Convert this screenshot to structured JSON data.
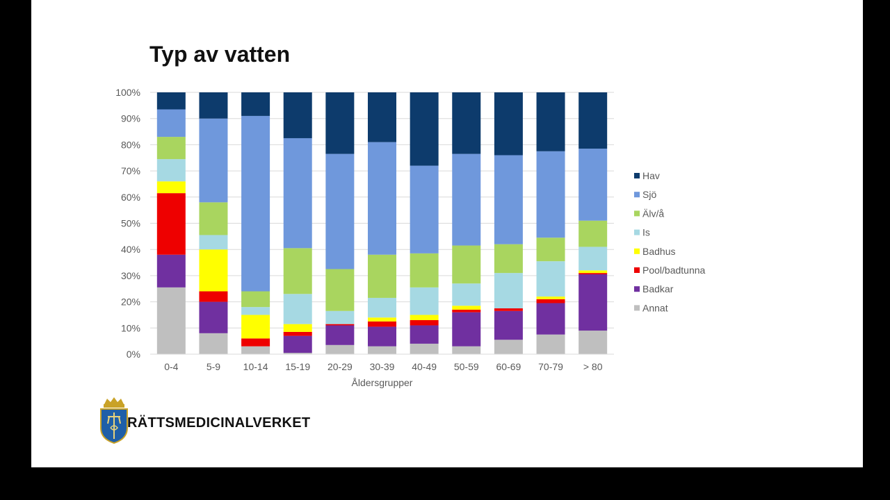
{
  "slide": {
    "title": "Typ av vatten",
    "organization": "RÄTTSMEDICINALVERKET"
  },
  "chart_data": {
    "type": "bar",
    "stacked": true,
    "normalized": true,
    "title": "Typ av vatten",
    "xlabel": "Åldersgrupper",
    "ylabel": "",
    "ylim": [
      0,
      100
    ],
    "yticks": [
      "0%",
      "10%",
      "20%",
      "30%",
      "40%",
      "50%",
      "60%",
      "70%",
      "80%",
      "90%",
      "100%"
    ],
    "categories": [
      "0-4",
      "5-9",
      "10-14",
      "15-19",
      "20-29",
      "30-39",
      "40-49",
      "50-59",
      "60-69",
      "70-79",
      "> 80"
    ],
    "legend_position": "right",
    "series": [
      {
        "name": "Annat",
        "color": "#bfbfbf",
        "values": [
          25.5,
          8,
          3,
          0.5,
          3.5,
          3,
          4,
          3,
          5.5,
          7.5,
          9
        ]
      },
      {
        "name": "Badkar",
        "color": "#7030a0",
        "values": [
          12.5,
          12,
          0,
          6.5,
          7.5,
          7.5,
          7,
          13,
          11,
          12,
          21.5
        ]
      },
      {
        "name": "Pool/badtunna",
        "color": "#ee0000",
        "values": [
          23.5,
          4,
          3,
          1.5,
          0.5,
          2,
          2,
          1,
          1,
          1.5,
          0.5
        ]
      },
      {
        "name": "Badhus",
        "color": "#ffff00",
        "values": [
          4.5,
          16,
          9,
          3,
          0,
          1.5,
          2,
          1.5,
          0,
          1,
          1
        ]
      },
      {
        "name": "Is",
        "color": "#a6d9e3",
        "values": [
          8.5,
          5.5,
          3,
          11.5,
          5,
          7.5,
          10.5,
          8.5,
          13.5,
          13.5,
          9
        ]
      },
      {
        "name": "Älv/å",
        "color": "#a9d55f",
        "values": [
          8.5,
          12.5,
          6,
          17.5,
          16,
          16.5,
          13,
          14.5,
          11,
          9,
          10
        ]
      },
      {
        "name": "Sjö",
        "color": "#6f98dc",
        "values": [
          10.5,
          32,
          67,
          42,
          44,
          43,
          33.5,
          35,
          34,
          33,
          27.5
        ]
      },
      {
        "name": "Hav",
        "color": "#0d3b6c",
        "values": [
          6.5,
          10,
          9,
          17.5,
          23.5,
          19,
          28,
          23.5,
          24,
          22.5,
          21.5
        ]
      }
    ]
  }
}
